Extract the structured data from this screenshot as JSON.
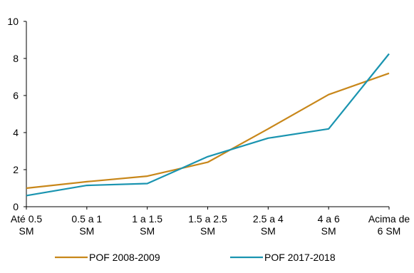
{
  "chart_data": {
    "type": "line",
    "categories": [
      [
        "Até 0.5",
        "SM"
      ],
      [
        "0.5 a 1",
        "SM"
      ],
      [
        "1 a 1.5",
        "SM"
      ],
      [
        "1.5 a 2.5",
        "SM"
      ],
      [
        "2.5 a 4",
        "SM"
      ],
      [
        "4 a 6",
        "SM"
      ],
      [
        "Acima de",
        "6 SM"
      ]
    ],
    "series": [
      {
        "name": "POF 2008-2009",
        "color": "#C8871A",
        "values": [
          1.0,
          1.35,
          1.65,
          2.4,
          4.2,
          6.05,
          7.2
        ]
      },
      {
        "name": "POF 2017-2018",
        "color": "#1A94B0",
        "values": [
          0.6,
          1.15,
          1.25,
          2.7,
          3.7,
          4.2,
          8.25
        ]
      }
    ],
    "ylim": [
      0,
      10
    ],
    "yticks": [
      0,
      2,
      4,
      6,
      8,
      10
    ],
    "title": "",
    "xlabel": "",
    "ylabel": "",
    "grid": false,
    "legend_position": "bottom"
  }
}
